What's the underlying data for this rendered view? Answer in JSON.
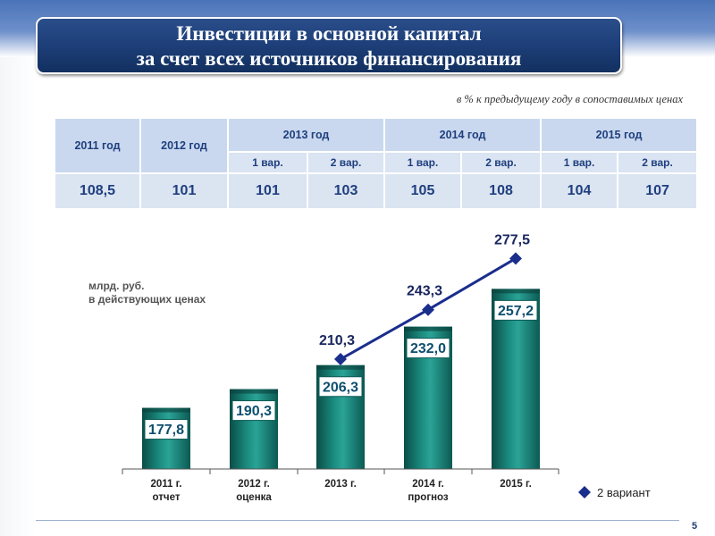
{
  "title": {
    "line1": "Инвестиции в основной капитал",
    "line2": "за счет всех источников финансирования"
  },
  "subtitle": "в % к предыдущему году в сопоставимых ценах",
  "table": {
    "year_2011": "2011 год",
    "year_2012": "2012 год",
    "year_2013": "2013 год",
    "year_2014": "2014 год",
    "year_2015": "2015 год",
    "var1": "1 вар.",
    "var2": "2 вар.",
    "values": [
      "108,5",
      "101",
      "101",
      "103",
      "105",
      "108",
      "104",
      "107"
    ]
  },
  "unit_label": {
    "line1": "млрд. руб.",
    "line2": "в действующих ценах"
  },
  "legend": {
    "label": "2 вариант"
  },
  "page_number": "5",
  "colors": {
    "title_bg": "#1d3e78",
    "bar": "#0f6a61",
    "line": "#1a2e8c",
    "table_header": "#c9d8ee",
    "table_text": "#1f3f7f"
  },
  "chart_data": {
    "type": "bar",
    "categories": [
      [
        "2011 г.",
        "отчет"
      ],
      [
        "2012 г.",
        "оценка"
      ],
      [
        "2013 г.",
        ""
      ],
      [
        "2014 г.",
        "прогноз"
      ],
      [
        "2015 г.",
        ""
      ]
    ],
    "bar_values": [
      177.8,
      190.3,
      206.3,
      232.0,
      257.2
    ],
    "bar_labels": [
      "177,8",
      "190,3",
      "206,3",
      "232,0",
      "257,2"
    ],
    "line_series": {
      "name": "2 вариант",
      "x_index": [
        2,
        3,
        4
      ],
      "values": [
        210.3,
        243.3,
        277.5
      ],
      "labels": [
        "210,3",
        "243,3",
        "277,5"
      ]
    },
    "title": "",
    "xlabel": "",
    "ylabel": "млрд. руб. в действующих ценах",
    "ylim": [
      137,
      292
    ],
    "grid": false
  }
}
